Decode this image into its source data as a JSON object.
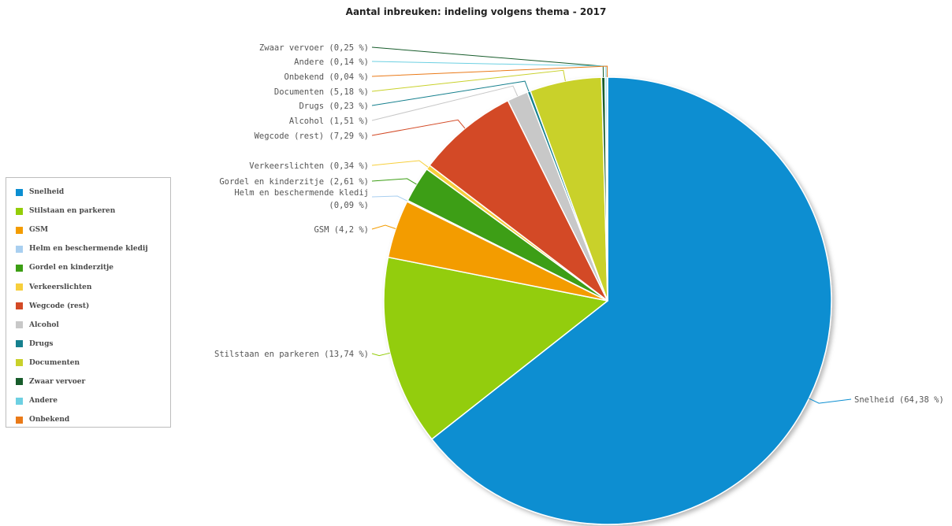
{
  "chart_data": {
    "type": "pie",
    "title": "Aantal inbreuken: indeling volgens thema - 2017",
    "legend_position": "left",
    "slices": [
      {
        "name": "Snelheid",
        "value": 64.38,
        "label": "Snelheid (64,38 %)",
        "color": "#0b8ed1"
      },
      {
        "name": "Stilstaan en parkeren",
        "value": 13.74,
        "label": "Stilstaan en parkeren (13,74 %)",
        "color": "#93cd08"
      },
      {
        "name": "GSM",
        "value": 4.2,
        "label": "GSM (4,2 %)",
        "color": "#f39c00"
      },
      {
        "name": "Helm en beschermende kledij",
        "value": 0.09,
        "label": "Helm en beschermende kledij (0,09 %)",
        "color": "#a9cff0"
      },
      {
        "name": "Gordel en kinderzitje",
        "value": 2.61,
        "label": "Gordel en kinderzitje (2,61 %)",
        "color": "#3c9e14"
      },
      {
        "name": "Verkeerslichten",
        "value": 0.34,
        "label": "Verkeerslichten (0,34 %)",
        "color": "#f7cf3c"
      },
      {
        "name": "Wegcode (rest)",
        "value": 7.29,
        "label": "Wegcode (rest) (7,29 %)",
        "color": "#d34a26"
      },
      {
        "name": "Alcohol",
        "value": 1.51,
        "label": "Alcohol (1,51 %)",
        "color": "#c8c8c8"
      },
      {
        "name": "Drugs",
        "value": 0.23,
        "label": "Drugs (0,23 %)",
        "color": "#16808e"
      },
      {
        "name": "Documenten",
        "value": 5.18,
        "label": "Documenten (5,18 %)",
        "color": "#c9d12b"
      },
      {
        "name": "Zwaar vervoer",
        "value": 0.25,
        "label": "Zwaar vervoer (0,25 %)",
        "color": "#175c2b"
      },
      {
        "name": "Andere",
        "value": 0.14,
        "label": "Andere (0,14 %)",
        "color": "#6dd0e2"
      },
      {
        "name": "Onbekend",
        "value": 0.04,
        "label": "Onbekend (0,04 %)",
        "color": "#ea7a18"
      }
    ]
  }
}
